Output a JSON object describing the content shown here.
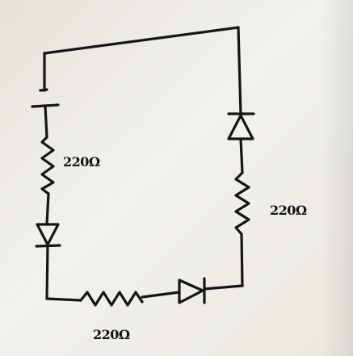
{
  "resistors": [
    {
      "value": "220Ω"
    },
    {
      "value": "220Ω"
    },
    {
      "value": "220Ω"
    }
  ],
  "colors": {
    "ink": "#151515",
    "paper": "#efede8"
  }
}
